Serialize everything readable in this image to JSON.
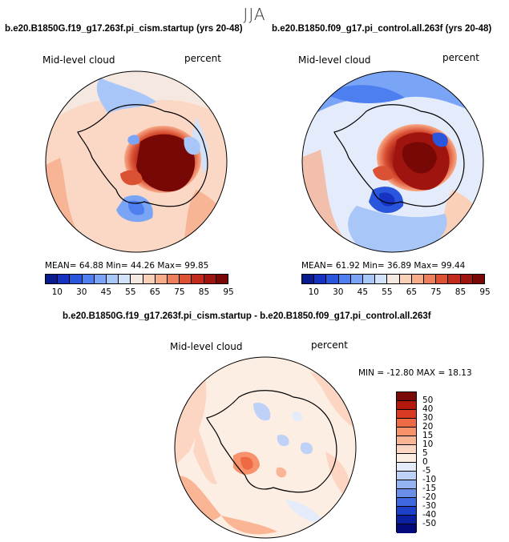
{
  "header": {
    "season": "JJA"
  },
  "panels": [
    {
      "title": "b.e20.B1850G.f19_g17.263f.pi_cism.startup (yrs 20-48)",
      "field_label": "Mid-level cloud",
      "units": "percent",
      "stats": "MEAN= 64.88  Min= 44.26  Max= 99.85"
    },
    {
      "title": "b.e20.B1850.f09_g17.pi_control.all.263f (yrs 20-48)",
      "field_label": "Mid-level cloud",
      "units": "percent",
      "stats": "MEAN= 61.92  Min= 36.89  Max= 99.44"
    }
  ],
  "diff_panel": {
    "title": "b.e20.B1850G.f19_g17.263f.pi_cism.startup - b.e20.B1850.f09_g17.pi_control.all.263f",
    "field_label": "Mid-level cloud",
    "units": "percent",
    "stats": "MIN = -12.80  MAX =  18.13"
  },
  "colorbar_abs": {
    "ticks": [
      "10",
      "30",
      "45",
      "55",
      "65",
      "75",
      "85",
      "95"
    ],
    "colors": [
      "#0a1b8f",
      "#1533c0",
      "#2a55dd",
      "#4d7ff0",
      "#7aa4f5",
      "#a9c6f8",
      "#d2e2fb",
      "#f5e8e0",
      "#fbd0b8",
      "#f7ac8a",
      "#ee7f5d",
      "#db5134",
      "#c22a1c",
      "#a0140f",
      "#780806"
    ]
  },
  "colorbar_diff": {
    "ticks": [
      "50",
      "40",
      "30",
      "20",
      "15",
      "10",
      "5",
      "0",
      "-5",
      "-10",
      "-15",
      "-20",
      "-30",
      "-40",
      "-50"
    ],
    "colors": [
      "#7a0a05",
      "#b3180f",
      "#d93a22",
      "#ee6a44",
      "#f7926b",
      "#fab595",
      "#fcd6c2",
      "#fdeee4",
      "#e4ecfb",
      "#bed1f6",
      "#95b3f1",
      "#6a8feb",
      "#3f67e0",
      "#1c40c8",
      "#0b20a0",
      "#02097a"
    ]
  }
}
